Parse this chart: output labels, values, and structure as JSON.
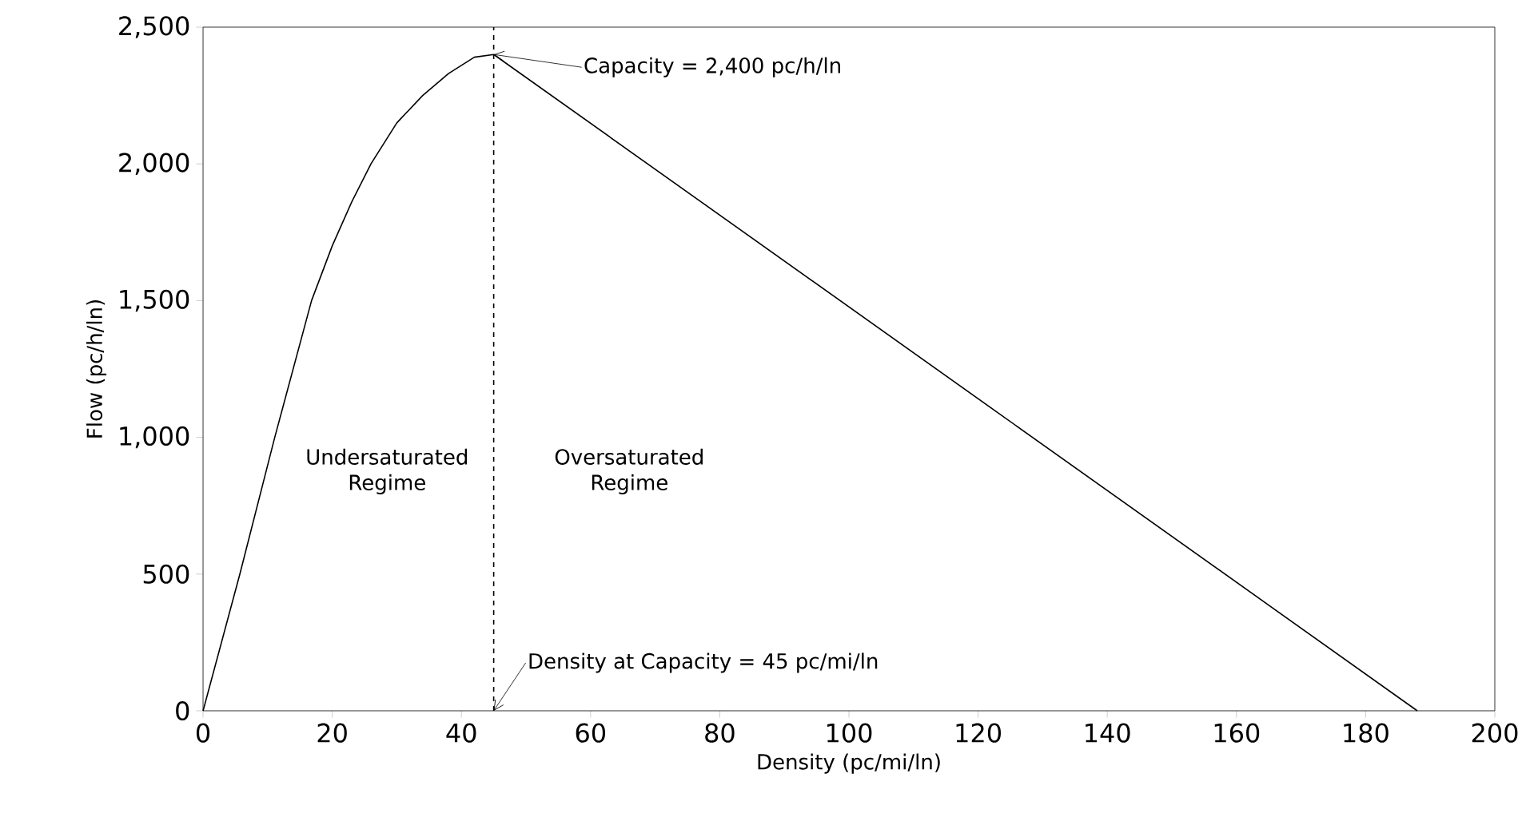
{
  "chart_data": {
    "type": "line",
    "xlabel": "Density (pc/mi/ln)",
    "ylabel": "Flow (pc/h/ln)",
    "x": [
      0,
      5.7,
      11.1,
      16.8,
      20,
      23,
      26,
      30,
      34,
      38,
      42,
      45,
      188
    ],
    "values": [
      0,
      500,
      1000,
      1500,
      1700,
      1860,
      2000,
      2150,
      2250,
      2330,
      2390,
      2400,
      0
    ],
    "color": "#000000",
    "line_style": "solid",
    "marker": "none",
    "grid": false,
    "xlim": [
      0,
      200
    ],
    "xticks": [
      0,
      20,
      40,
      60,
      80,
      100,
      120,
      140,
      160,
      180,
      200
    ],
    "ylim": [
      0,
      2500
    ],
    "yticks": [
      0,
      500,
      {
        "value": 1000,
        "label": "1,000"
      },
      {
        "value": 1500,
        "label": "1,500"
      },
      {
        "value": 2000,
        "label": "2,000"
      },
      {
        "value": 2500,
        "label": "2,500"
      }
    ],
    "ref_lines": [
      {
        "axis": "x",
        "value": 45,
        "label": null,
        "line_style": "dashed",
        "color": "#000000"
      }
    ],
    "annotations": [
      {
        "text": "Capacity = 2,400 pc/h/ln",
        "x": 45,
        "y": 2400
      },
      {
        "text": "Density at Capacity = 45 pc/mi/ln",
        "x": 45,
        "y": 0
      },
      "Undersaturated Regime",
      "Oversaturated Regime"
    ]
  }
}
